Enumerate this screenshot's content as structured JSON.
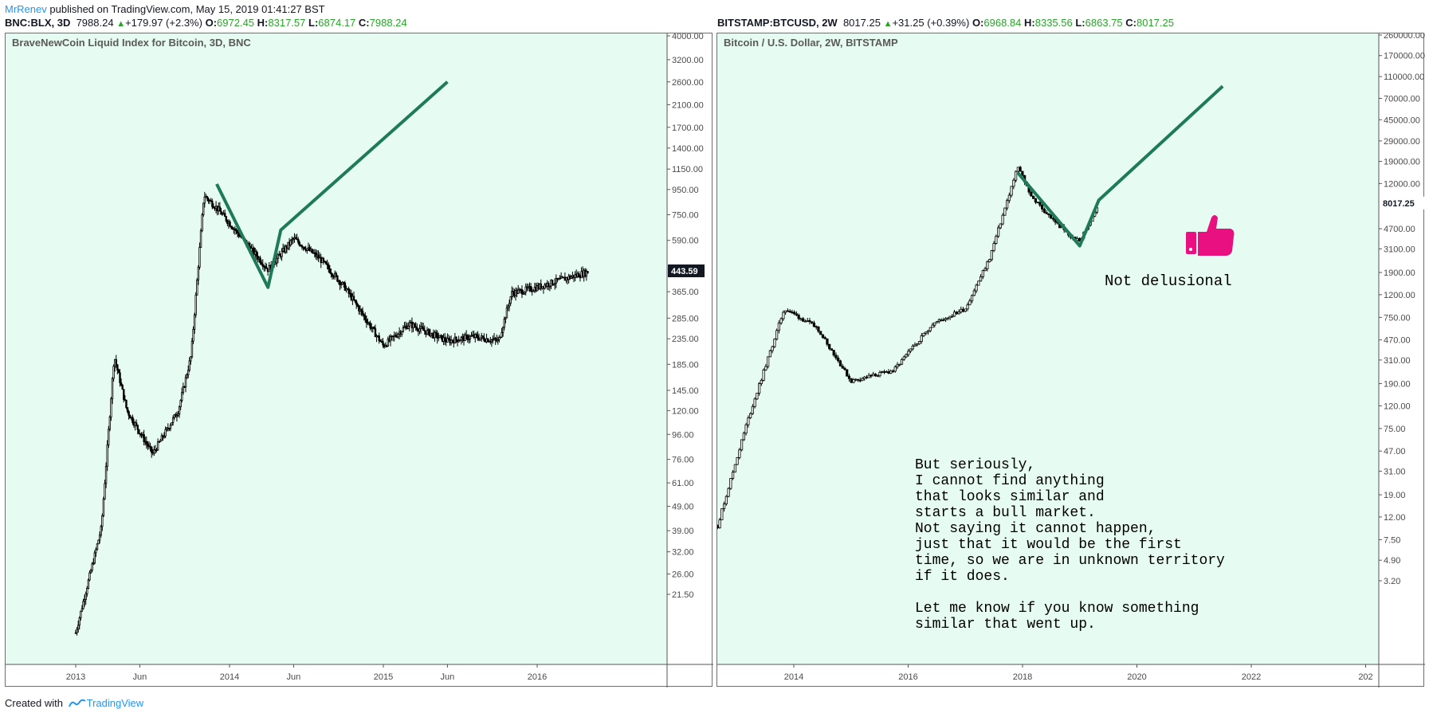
{
  "header": {
    "author": "MrRenev",
    "published": "published on TradingView.com, May 15, 2019 01:41:27 BST"
  },
  "left": {
    "symbol": "BNC:BLX, 3D",
    "last": "7988.24",
    "change": "+179.97 (+2.3%)",
    "O": "6972.45",
    "H": "8317.57",
    "L": "6874.17",
    "C": "7988.24"
  },
  "right": {
    "symbol": "BITSTAMP:BTCUSD, 2W",
    "last": "8017.25",
    "change": "+31.25 (+0.39%)",
    "O": "6968.84",
    "H": "8335.56",
    "L": "6863.75",
    "C": "8017.25"
  },
  "footer": {
    "created_with": "Created with",
    "brand": "TradingView"
  },
  "colors": {
    "background": "#e6fbf2",
    "candles": "#000000",
    "drawing": "#1e7a5a",
    "up": "#26a626",
    "axis_text": "#4a4a4a",
    "thumb": "#e8117f"
  },
  "chart_data": [
    {
      "type": "candlestick",
      "title": "BraveNewCoin Liquid Index for Bitcoin, 3D, BNC",
      "y_scale": "log",
      "y_ticks": [
        "4000.00",
        "3200.00",
        "2600.00",
        "2100.00",
        "1700.00",
        "1400.00",
        "1150.00",
        "950.00",
        "750.00",
        "590.00",
        "365.00",
        "285.00",
        "235.00",
        "185.00",
        "145.00",
        "120.00",
        "96.00",
        "76.00",
        "61.00",
        "49.00",
        "39.00",
        "32.00",
        "26.00",
        "21.50"
      ],
      "x_ticks": [
        "2013",
        "Jun",
        "2014",
        "Jun",
        "2015",
        "Jun",
        "2016"
      ],
      "price_label": "443.59",
      "series": [
        {
          "x": [
            "2013-01",
            "2013-03",
            "2013-04",
            "2013-05",
            "2013-07",
            "2013-09",
            "2013-10",
            "2013-11",
            "2013-12",
            "2014-02",
            "2014-04",
            "2014-06",
            "2014-08",
            "2014-10",
            "2015-01",
            "2015-03",
            "2015-06",
            "2015-08",
            "2015-10",
            "2015-11",
            "2016-01",
            "2016-03",
            "2016-05"
          ],
          "y": [
            15,
            40,
            200,
            120,
            80,
            120,
            200,
            900,
            800,
            600,
            450,
            600,
            500,
            380,
            220,
            270,
            230,
            240,
            230,
            360,
            380,
            410,
            440
          ]
        }
      ],
      "drawing": {
        "points": [
          [
            "2013-12",
            1000
          ],
          [
            "2014-04",
            380
          ],
          [
            "2014-05",
            650
          ],
          [
            "2015-06",
            2600
          ]
        ]
      }
    },
    {
      "type": "candlestick",
      "title": "Bitcoin / U.S. Dollar, 2W, BITSTAMP",
      "y_scale": "log",
      "y_ticks": [
        "260000.00",
        "170000.00",
        "110000.00",
        "70000.00",
        "45000.00",
        "29000.00",
        "19000.00",
        "12000.00",
        "4700.00",
        "3100.00",
        "1900.00",
        "1200.00",
        "750.00",
        "470.00",
        "310.00",
        "190.00",
        "120.00",
        "75.00",
        "47.00",
        "31.00",
        "19.00",
        "12.00",
        "7.50",
        "4.90",
        "3.20"
      ],
      "x_ticks": [
        "2014",
        "2016",
        "2018",
        "2020",
        "2022",
        "202"
      ],
      "price_label": "8017.25",
      "series": [
        {
          "x": [
            "2012-09",
            "2013-03",
            "2013-11",
            "2014-06",
            "2015-01",
            "2015-10",
            "2016-06",
            "2017-01",
            "2017-06",
            "2017-12",
            "2018-03",
            "2018-06",
            "2018-11",
            "2019-01",
            "2019-05"
          ],
          "y": [
            10,
            80,
            900,
            600,
            200,
            250,
            650,
            900,
            2500,
            17000,
            9000,
            6500,
            4000,
            3600,
            8000
          ]
        }
      ],
      "drawing": {
        "points": [
          [
            "2017-12",
            15000
          ],
          [
            "2019-01",
            3300
          ],
          [
            "2019-05",
            8500
          ],
          [
            "2021-07",
            90000
          ]
        ]
      },
      "annotations": [
        "Not delusional",
        "But seriously,\nI cannot find anything\nthat looks similar and\nstarts a bull market.\nNot saying it cannot happen,\njust that it would be the first\ntime, so we are in unknown territory\nif it does.\n\nLet me know if you know something\nsimilar that went up."
      ]
    }
  ]
}
